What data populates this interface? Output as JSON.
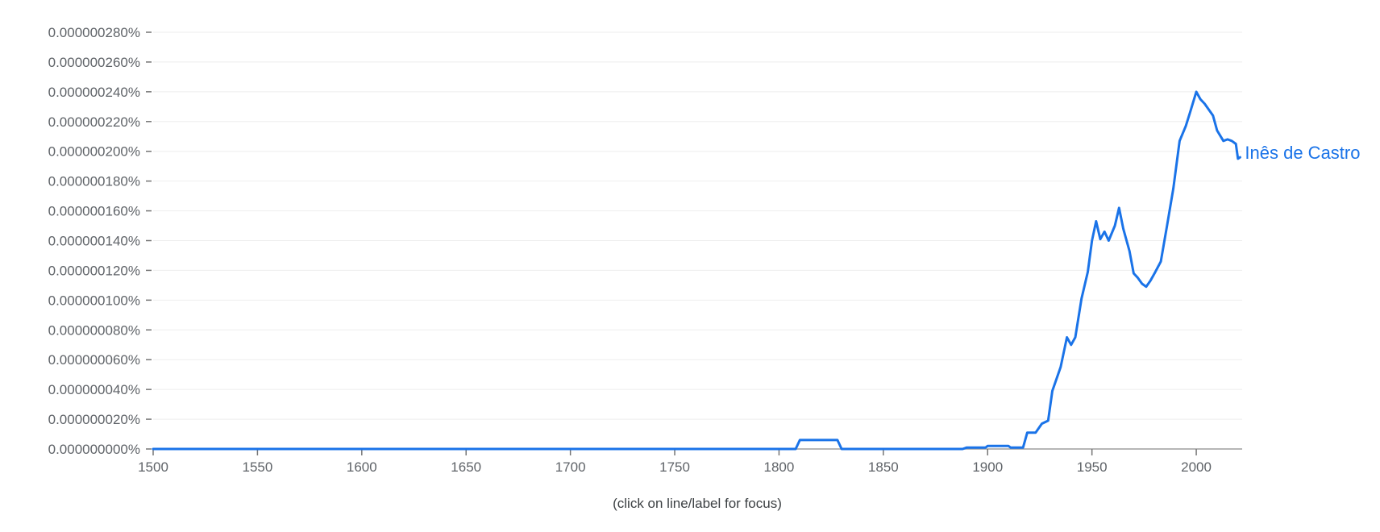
{
  "chart_data": {
    "type": "line",
    "title": "",
    "xlabel": "",
    "ylabel": "",
    "xlim": [
      1500,
      2022
    ],
    "ylim": [
      0,
      2.8e-07
    ],
    "grid": true,
    "legend": "inline label at end of line",
    "x_ticks": [
      1500,
      1550,
      1600,
      1650,
      1700,
      1750,
      1800,
      1850,
      1900,
      1950,
      2000
    ],
    "y_ticks": [
      0,
      2e-08,
      4e-08,
      6e-08,
      8e-08,
      1e-07,
      1.2e-07,
      1.4e-07,
      1.6e-07,
      1.8e-07,
      2e-07,
      2.2e-07,
      2.4e-07,
      2.6e-07,
      2.8e-07
    ],
    "y_tick_labels": [
      "0.000000000%",
      "0.000000020%",
      "0.000000040%",
      "0.000000060%",
      "0.000000080%",
      "0.000000100%",
      "0.000000120%",
      "0.000000140%",
      "0.000000160%",
      "0.000000180%",
      "0.000000200%",
      "0.000000220%",
      "0.000000240%",
      "0.000000260%",
      "0.000000280%"
    ],
    "series": [
      {
        "name": "Inês de Castro",
        "color": "#1a73e8",
        "points": [
          [
            1500,
            0
          ],
          [
            1808,
            0
          ],
          [
            1810,
            6e-09
          ],
          [
            1828,
            6e-09
          ],
          [
            1830,
            0
          ],
          [
            1888,
            0
          ],
          [
            1890,
            1e-09
          ],
          [
            1899,
            1e-09
          ],
          [
            1900,
            2e-09
          ],
          [
            1910,
            2e-09
          ],
          [
            1911,
            1e-09
          ],
          [
            1917,
            1e-09
          ],
          [
            1919,
            1.1e-08
          ],
          [
            1923,
            1.1e-08
          ],
          [
            1926,
            1.7e-08
          ],
          [
            1929,
            1.9e-08
          ],
          [
            1931,
            3.9e-08
          ],
          [
            1935,
            5.5e-08
          ],
          [
            1938,
            7.5e-08
          ],
          [
            1940,
            7e-08
          ],
          [
            1942,
            7.5e-08
          ],
          [
            1945,
            1.01e-07
          ],
          [
            1948,
            1.19e-07
          ],
          [
            1950,
            1.4e-07
          ],
          [
            1952,
            1.53e-07
          ],
          [
            1954,
            1.41e-07
          ],
          [
            1956,
            1.46e-07
          ],
          [
            1958,
            1.4e-07
          ],
          [
            1961,
            1.5e-07
          ],
          [
            1963,
            1.62e-07
          ],
          [
            1965,
            1.48e-07
          ],
          [
            1968,
            1.33e-07
          ],
          [
            1970,
            1.18e-07
          ],
          [
            1972,
            1.15e-07
          ],
          [
            1974,
            1.11e-07
          ],
          [
            1976,
            1.09e-07
          ],
          [
            1978,
            1.13e-07
          ],
          [
            1980,
            1.18e-07
          ],
          [
            1983,
            1.26e-07
          ],
          [
            1986,
            1.5e-07
          ],
          [
            1989,
            1.75e-07
          ],
          [
            1992,
            2.07e-07
          ],
          [
            1995,
            2.17e-07
          ],
          [
            1997,
            2.26e-07
          ],
          [
            2000,
            2.4e-07
          ],
          [
            2002,
            2.35e-07
          ],
          [
            2004,
            2.32e-07
          ],
          [
            2006,
            2.28e-07
          ],
          [
            2008,
            2.24e-07
          ],
          [
            2010,
            2.14e-07
          ],
          [
            2013,
            2.07e-07
          ],
          [
            2015,
            2.08e-07
          ],
          [
            2017,
            2.07e-07
          ],
          [
            2019,
            2.05e-07
          ],
          [
            2020,
            1.95e-07
          ],
          [
            2021,
            1.96e-07
          ]
        ]
      }
    ]
  },
  "footnote": "(click on line/label for focus)"
}
